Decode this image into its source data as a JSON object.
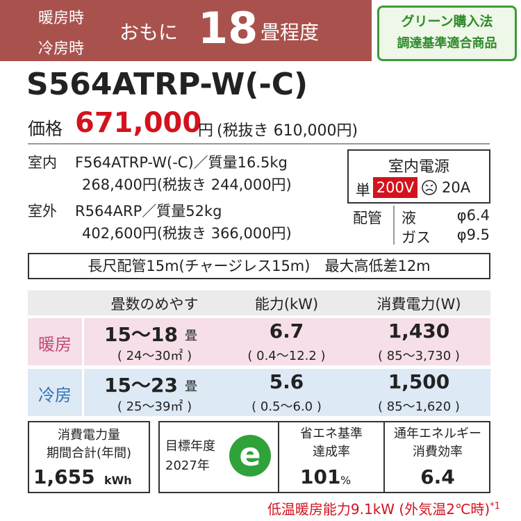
{
  "header": {
    "heating": "暖房時",
    "cooling": "冷房時",
    "prefix": "おもに",
    "size": "18",
    "suffix": "畳程度",
    "badge": [
      "グリーン購入法",
      "調達基準適合商品"
    ]
  },
  "model": "S564ATRP-W(-C)",
  "price": {
    "label": "価格",
    "value": "671,000",
    "unit": "円",
    "tax": "(税抜き 610,000円)"
  },
  "units": [
    {
      "label": "室内",
      "spec": "F564ATRP-W(-C)／質量16.5kg",
      "price": "268,400円(税抜き 244,000円)"
    },
    {
      "label": "室外",
      "spec": "R564ARP／質量52kg",
      "price": "402,600円(税抜き 366,000円)"
    }
  ],
  "power": {
    "title": "室内電源",
    "phase": "単",
    "voltage": "200V",
    "amp": "20A"
  },
  "piping": {
    "label": "配管",
    "liquid": "液",
    "liquid_size": "φ6.4",
    "gas": "ガス",
    "gas_size": "φ9.5"
  },
  "pipe_note": "長尺配管15m(チャージレス15m)　最大高低差12m",
  "table": {
    "header": [
      "畳数のめやす",
      "能力(kW)",
      "消費電力(W)"
    ],
    "rows": [
      {
        "mode": "暖房",
        "area": "15～18",
        "area_unit": "畳",
        "area_range": "( 24～30㎡ )",
        "capacity": "6.7",
        "capacity_range": "( 0.4～12.2 )",
        "power": "1,430",
        "power_range": "( 85～3,730 )"
      },
      {
        "mode": "冷房",
        "area": "15～23",
        "area_unit": "畳",
        "area_range": "( 25～39㎡ )",
        "capacity": "5.6",
        "capacity_range": "( 0.5～6.0 )",
        "power": "1,500",
        "power_range": "( 85～1,620 )"
      }
    ]
  },
  "footer": {
    "annual": {
      "lines": [
        "消費電力量",
        "期間合計(年間)"
      ],
      "value": "1,655",
      "unit": "kWh"
    },
    "target": {
      "lines": [
        "目標年度",
        "2027年"
      ],
      "logo": "e"
    },
    "achievement": {
      "lines": [
        "省エネ基準",
        "達成率"
      ],
      "value": "101",
      "unit": "%"
    },
    "apf": {
      "lines": [
        "通年エネルギー",
        "消費効率"
      ],
      "value": "6.4"
    }
  },
  "note": {
    "text": "低温暖房能力9.1kW (外気温2℃時)",
    "mark": "*1"
  }
}
